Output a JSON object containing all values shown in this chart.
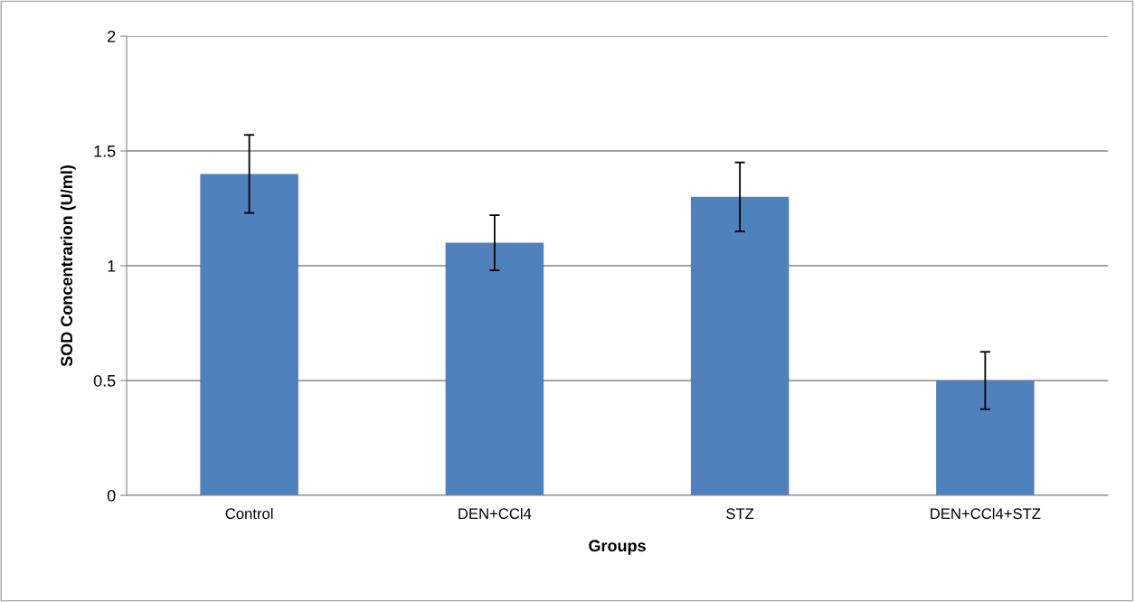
{
  "chart_data": {
    "type": "bar",
    "xlabel": "Groups",
    "ylabel": "SOD Concentrarion (U/ml)",
    "categories": [
      "Control",
      "DEN+CCl4",
      "STZ",
      "DEN+CCl4+STZ"
    ],
    "values": [
      1.4,
      1.1,
      1.3,
      0.5
    ],
    "errors": [
      0.17,
      0.12,
      0.15,
      0.125
    ],
    "color": "#4f81bd",
    "ylim": [
      0,
      2
    ],
    "yticks": [
      0,
      0.5,
      1,
      1.5,
      2
    ],
    "grid": "y"
  }
}
